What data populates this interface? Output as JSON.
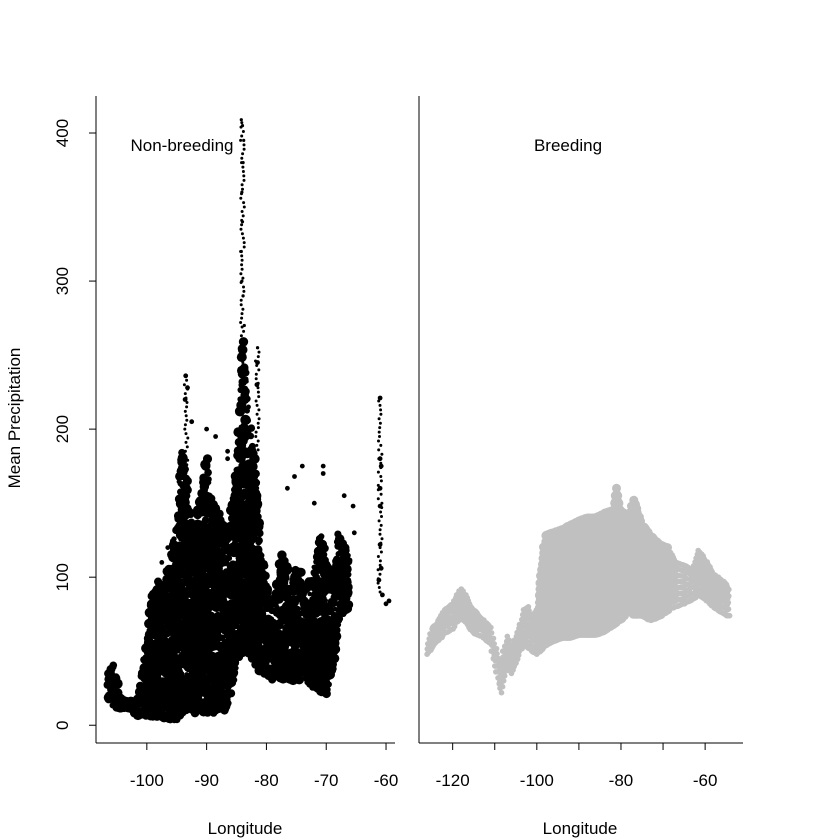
{
  "chart_data": [
    {
      "type": "scatter",
      "panel_label": "Non-breeding",
      "xlabel": "Longitude",
      "ylabel": "Mean Precipitation",
      "xlim": [
        -108.5,
        -58.5
      ],
      "ylim": [
        -12,
        425
      ],
      "xticks": [
        -100,
        -90,
        -80,
        -70,
        -60
      ],
      "yticks": [
        0,
        100,
        200,
        300,
        400
      ],
      "point_color": "#000000",
      "envelope": [
        [
          -106.5,
          15,
          35
        ],
        [
          -105.5,
          13,
          42
        ],
        [
          -104.5,
          11,
          22
        ],
        [
          -103,
          10,
          16
        ],
        [
          -101.5,
          7,
          18
        ],
        [
          -100,
          6,
          58
        ],
        [
          -99,
          5,
          95
        ],
        [
          -98,
          5,
          100
        ],
        [
          -97,
          4,
          98
        ],
        [
          -96,
          3,
          110
        ],
        [
          -95.5,
          2,
          130
        ],
        [
          -95,
          3,
          135
        ],
        [
          -94.5,
          5,
          180
        ],
        [
          -94,
          10,
          185
        ],
        [
          -93.5,
          10,
          175
        ],
        [
          -93,
          10,
          150
        ],
        [
          -92,
          8,
          135
        ],
        [
          -91,
          8,
          160
        ],
        [
          -90,
          9,
          180
        ],
        [
          -89,
          8,
          150
        ],
        [
          -88,
          10,
          145
        ],
        [
          -87,
          10,
          130
        ],
        [
          -86.5,
          12,
          135
        ],
        [
          -86,
          20,
          140
        ],
        [
          -85.5,
          30,
          160
        ],
        [
          -85,
          40,
          175
        ],
        [
          -84.5,
          45,
          215
        ],
        [
          -84,
          48,
          270
        ],
        [
          -83.5,
          48,
          240
        ],
        [
          -83,
          48,
          210
        ],
        [
          -82.5,
          45,
          200
        ],
        [
          -82,
          42,
          180
        ],
        [
          -81.5,
          38,
          155
        ],
        [
          -81,
          35,
          120
        ],
        [
          -80,
          35,
          100
        ],
        [
          -79,
          30,
          80
        ],
        [
          -78,
          32,
          105
        ],
        [
          -77,
          30,
          120
        ],
        [
          -76,
          30,
          95
        ],
        [
          -75,
          30,
          110
        ],
        [
          -74,
          32,
          100
        ],
        [
          -73,
          28,
          95
        ],
        [
          -72,
          25,
          110
        ],
        [
          -71,
          22,
          130
        ],
        [
          -70,
          20,
          120
        ],
        [
          -69,
          35,
          90
        ],
        [
          -68,
          65,
          130
        ],
        [
          -67,
          75,
          125
        ],
        [
          -66,
          80,
          110
        ]
      ],
      "spikes": [
        [
          -84.2,
          409
        ],
        [
          -84,
          405
        ],
        [
          -83.8,
          395
        ],
        [
          -83.9,
          380
        ],
        [
          -84.1,
          360
        ],
        [
          -84,
          340
        ],
        [
          -84.2,
          320
        ],
        [
          -84.1,
          300
        ],
        [
          -83.9,
          290
        ],
        [
          -83.7,
          270
        ],
        [
          -81.5,
          255
        ],
        [
          -81.5,
          245
        ],
        [
          -81.6,
          230
        ],
        [
          -83,
          215
        ],
        [
          -93.5,
          236
        ],
        [
          -93.2,
          228
        ],
        [
          -93.6,
          220
        ],
        [
          -92.5,
          205
        ],
        [
          -90,
          200
        ],
        [
          -88.5,
          195
        ],
        [
          -86.5,
          185
        ],
        [
          -86.5,
          180
        ],
        [
          -75.3,
          168
        ],
        [
          -76.5,
          160
        ],
        [
          -70.5,
          175
        ],
        [
          -70.5,
          170
        ],
        [
          -67,
          155
        ],
        [
          -65.5,
          148
        ],
        [
          -65.3,
          130
        ],
        [
          -61,
          221
        ],
        [
          -61,
          180
        ],
        [
          -60.8,
          175
        ],
        [
          -61,
          160
        ],
        [
          -61,
          148
        ],
        [
          -61,
          122
        ],
        [
          -60.8,
          106
        ],
        [
          -61.2,
          98
        ],
        [
          -59.5,
          84
        ],
        [
          -60,
          82
        ],
        [
          -60.6,
          88
        ],
        [
          -96.5,
          120
        ],
        [
          -97.5,
          110
        ],
        [
          -79.5,
          90
        ],
        [
          -74,
          175
        ],
        [
          -72,
          150
        ]
      ]
    },
    {
      "type": "scatter",
      "panel_label": "Breeding",
      "xlabel": "Longitude",
      "ylabel": "",
      "xlim": [
        -128,
        -51
      ],
      "ylim": [
        -12,
        425
      ],
      "xticks": [
        -120,
        -100,
        -80,
        -60
      ],
      "minor_xticks": [
        -110,
        -90,
        -70
      ],
      "point_color": "#c0c0c0",
      "band": [
        [
          -126,
          48,
          55
        ],
        [
          -125,
          52,
          65
        ],
        [
          -124,
          56,
          68
        ],
        [
          -123,
          58,
          72
        ],
        [
          -122,
          62,
          78
        ],
        [
          -120,
          65,
          82
        ],
        [
          -119,
          70,
          88
        ],
        [
          -118,
          72,
          92
        ],
        [
          -117,
          70,
          88
        ],
        [
          -116,
          66,
          82
        ],
        [
          -115,
          62,
          78
        ],
        [
          -113,
          60,
          72
        ],
        [
          -111,
          55,
          66
        ],
        [
          -110,
          40,
          55
        ],
        [
          -109,
          28,
          45
        ],
        [
          -108.5,
          22,
          38
        ],
        [
          -108,
          30,
          50
        ],
        [
          -107,
          40,
          60
        ],
        [
          -106,
          35,
          52
        ],
        [
          -105,
          42,
          60
        ],
        [
          -104,
          50,
          68
        ],
        [
          -103,
          55,
          78
        ],
        [
          -102,
          52,
          80
        ],
        [
          -101,
          50,
          72
        ],
        [
          -100,
          48,
          78
        ],
        [
          -99,
          52,
          105
        ],
        [
          -98,
          55,
          128
        ],
        [
          -96,
          58,
          130
        ],
        [
          -94,
          60,
          132
        ],
        [
          -92,
          60,
          135
        ],
        [
          -90,
          62,
          138
        ],
        [
          -88,
          62,
          140
        ],
        [
          -86,
          62,
          140
        ],
        [
          -84,
          64,
          143
        ],
        [
          -82,
          68,
          145
        ],
        [
          -81,
          70,
          160
        ],
        [
          -80,
          72,
          145
        ],
        [
          -78,
          78,
          140
        ],
        [
          -77,
          75,
          152
        ],
        [
          -75,
          75,
          135
        ],
        [
          -73,
          72,
          128
        ],
        [
          -71,
          74,
          122
        ],
        [
          -69,
          78,
          120
        ],
        [
          -67,
          80,
          110
        ],
        [
          -65,
          82,
          108
        ],
        [
          -63,
          85,
          105
        ],
        [
          -61.5,
          88,
          118
        ],
        [
          -60,
          85,
          112
        ],
        [
          -58,
          80,
          102
        ],
        [
          -56,
          76,
          98
        ],
        [
          -55,
          74,
          95
        ],
        [
          -54,
          74,
          90
        ]
      ]
    }
  ]
}
